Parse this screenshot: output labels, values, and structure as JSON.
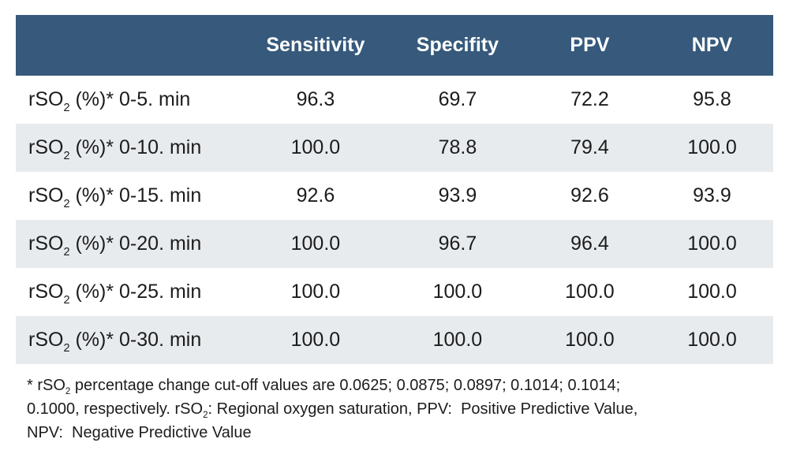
{
  "colors": {
    "header_bg": "#36597c",
    "header_text": "#ffffff",
    "row_alt_bg": "#e8ebee",
    "row_bg": "#ffffff",
    "text": "#1c1c1c",
    "page_bg": "#ffffff"
  },
  "chart_data": {
    "type": "table",
    "columns": [
      "",
      "Sensitivity",
      "Specifity",
      "PPV",
      "NPV"
    ],
    "rows": [
      {
        "label_runs": [
          {
            "t": "rSO"
          },
          {
            "sub": "2"
          },
          {
            "t": " (%)* 0-5. min"
          }
        ],
        "label_text": "rSO2 (%)* 0-5. min",
        "values": [
          "96.3",
          "69.7",
          "72.2",
          "95.8"
        ]
      },
      {
        "label_runs": [
          {
            "t": "rSO"
          },
          {
            "sub": "2"
          },
          {
            "t": " (%)* 0-10. min"
          }
        ],
        "label_text": "rSO2 (%)* 0-10. min",
        "values": [
          "100.0",
          "78.8",
          "79.4",
          "100.0"
        ]
      },
      {
        "label_runs": [
          {
            "t": "rSO"
          },
          {
            "sub": "2"
          },
          {
            "t": " (%)* 0-15. min"
          }
        ],
        "label_text": "rSO2 (%)* 0-15. min",
        "values": [
          "92.6",
          "93.9",
          "92.6",
          "93.9"
        ]
      },
      {
        "label_runs": [
          {
            "t": "rSO"
          },
          {
            "sub": "2"
          },
          {
            "t": " (%)* 0-20. min"
          }
        ],
        "label_text": "rSO2 (%)* 0-20. min",
        "values": [
          "100.0",
          "96.7",
          "96.4",
          "100.0"
        ]
      },
      {
        "label_runs": [
          {
            "t": "rSO"
          },
          {
            "sub": "2"
          },
          {
            "t": " (%)* 0-25. min"
          }
        ],
        "label_text": "rSO2 (%)* 0-25. min",
        "values": [
          "100.0",
          "100.0",
          "100.0",
          "100.0"
        ]
      },
      {
        "label_runs": [
          {
            "t": "rSO"
          },
          {
            "sub": "2"
          },
          {
            "t": " (%)* 0-30. min"
          }
        ],
        "label_text": "rSO2 (%)* 0-30. min",
        "values": [
          "100.0",
          "100.0",
          "100.0",
          "100.0"
        ]
      }
    ],
    "footnote_lines": [
      [
        {
          "t": "* rSO"
        },
        {
          "sub": "2"
        },
        {
          "t": " percentage change cut-off values are 0.0625; 0.0875; 0.0897; 0.1014; 0.1014;"
        }
      ],
      [
        {
          "t": "0.1000, respectively. rSO"
        },
        {
          "sub": "2"
        },
        {
          "t": ": Regional oxygen saturation, PPV:  Positive Predictive Value,"
        }
      ],
      [
        {
          "t": "NPV:  Negative Predictive Value"
        }
      ]
    ]
  }
}
